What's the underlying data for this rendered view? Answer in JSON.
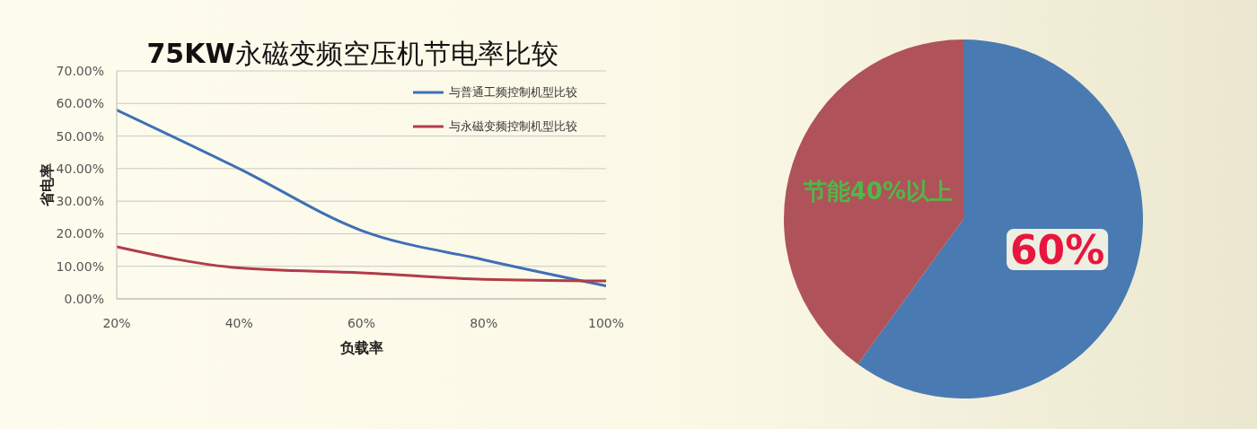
{
  "chart_data": [
    {
      "type": "line",
      "title": "75KW永磁变频空压机节电率比较",
      "xlabel": "负载率",
      "ylabel": "省电率",
      "categories": [
        "20%",
        "40%",
        "60%",
        "80%",
        "100%"
      ],
      "series": [
        {
          "name": "与普通工频控制机型比较",
          "color": "#3f6fb6",
          "values": [
            58,
            40,
            21,
            12,
            4
          ]
        },
        {
          "name": "与永磁变频控制机型比较",
          "color": "#b13c48",
          "values": [
            16,
            9.5,
            8,
            6,
            5.5
          ]
        }
      ],
      "ylim": [
        0,
        70
      ],
      "yticks": [
        {
          "value": 0,
          "label": "0.00%"
        },
        {
          "value": 10,
          "label": "10.00%"
        },
        {
          "value": 20,
          "label": "20.00%"
        },
        {
          "value": 30,
          "label": "30.00%"
        },
        {
          "value": 40,
          "label": "40.00%"
        },
        {
          "value": 50,
          "label": "50.00%"
        },
        {
          "value": 60,
          "label": "60.00%"
        },
        {
          "value": 70,
          "label": "70.00%"
        }
      ],
      "grid": "y",
      "legend": "top right",
      "marker": "none",
      "line_style": "solid"
    },
    {
      "type": "pie",
      "categories": [
        null,
        null
      ],
      "values": [
        60,
        40
      ],
      "colors": [
        "#4a7ab2",
        "#b0525a"
      ],
      "value_labels": [
        "60%",
        "节能40%以上"
      ]
    }
  ]
}
